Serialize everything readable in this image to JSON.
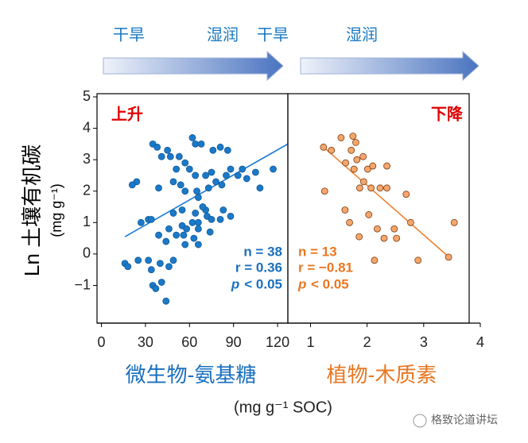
{
  "header": {
    "arrow_labels": [
      "干旱",
      "湿润",
      "干旱",
      "湿润"
    ]
  },
  "y_label": "Ln 土壤有机碳",
  "y_unit": "(mg g⁻¹)",
  "x_unit": "(mg g⁻¹ SOC)",
  "watermark": "格致论道讲坛",
  "chart_data": [
    {
      "type": "scatter",
      "x_label": "微生物-氨基糖",
      "annotation": "上升",
      "stats": {
        "n": "n = 38",
        "r": "r = 0.36",
        "p_symbol": "p",
        "p": "< 0.05"
      },
      "xlim": [
        -3,
        127
      ],
      "xticks": [
        0,
        30,
        60,
        90,
        120
      ],
      "ylim": [
        -2.2,
        5
      ],
      "yticks": [
        5,
        4,
        3,
        2,
        1,
        0,
        {
          "value": -1,
          "label": "−1"
        }
      ],
      "series": [
        {
          "color": "#1b79c8",
          "x": [
            16,
            18,
            25,
            34,
            35,
            32,
            37,
            44,
            41,
            49,
            46,
            40,
            35,
            38,
            41,
            45,
            47,
            53,
            57,
            60,
            64,
            62,
            68,
            76,
            81,
            86,
            88,
            93,
            99,
            96,
            117,
            105,
            108,
            75,
            71,
            78,
            73,
            82,
            85,
            64,
            51,
            54,
            49,
            39,
            57,
            65,
            24,
            21,
            66,
            32,
            34,
            27,
            46,
            55,
            58,
            62,
            66,
            55,
            64,
            72,
            71,
            75,
            81,
            88,
            39,
            44,
            51,
            63,
            56,
            66,
            74,
            83,
            69,
            49,
            57,
            66
          ],
          "values": [
            -0.3,
            -0.4,
            -0.2,
            -0.5,
            -1.0,
            -0.2,
            -1.1,
            -1.5,
            -0.9,
            -0.2,
            -0.4,
            -0.3,
            3.5,
            3.4,
            3.1,
            3.3,
            3.1,
            3.1,
            2.9,
            2.7,
            3.5,
            3.7,
            3.5,
            3.3,
            3.4,
            3.3,
            2.7,
            2.5,
            2.4,
            2.7,
            2.7,
            2.6,
            2.1,
            2.6,
            2.5,
            2.3,
            2.1,
            2.2,
            2.5,
            2.5,
            2.7,
            2.2,
            2.3,
            2.1,
            2.0,
            2.0,
            2.3,
            2.2,
            1.8,
            1.1,
            1.1,
            1.0,
            0.8,
            0.9,
            0.8,
            1.0,
            1.0,
            1.4,
            1.3,
            1.2,
            1.4,
            1.1,
            1.1,
            1.2,
            0.6,
            0.4,
            0.6,
            0.5,
            0.6,
            0.8,
            0.7,
            1.4,
            1.5,
            1.3,
            0.3,
            0.3
          ]
        }
      ],
      "trend": {
        "color": "#1c7cd5",
        "x": [
          16,
          127
        ],
        "values": [
          0.55,
          3.5
        ]
      }
    },
    {
      "type": "scatter",
      "x_label": "植物-木质素",
      "annotation": "下降",
      "stats": {
        "n": "n = 13",
        "r": "r = −0.81",
        "p_symbol": "p",
        "p": "< 0.05"
      },
      "xlim": [
        0.6,
        4
      ],
      "xticks": [
        1,
        2,
        3,
        4
      ],
      "ylim": [
        -2.2,
        5
      ],
      "series": [
        {
          "color": "#f5a66c",
          "x": [
            1.23,
            1.37,
            1.25,
            1.54,
            1.75,
            1.8,
            1.72,
            1.82,
            1.93,
            1.62,
            1.77,
            2.01,
            2.1,
            2.35,
            1.94,
            1.87,
            2.07,
            2.23,
            2.35,
            2.69,
            1.61,
            1.69,
            2.03,
            2.18,
            2.48,
            2.77,
            1.86,
            2.3,
            2.52,
            2.13,
            2.9,
            3.44,
            3.54
          ],
          "values": [
            3.4,
            3.3,
            2.0,
            3.7,
            3.75,
            3.55,
            3.3,
            3.0,
            3.1,
            2.9,
            2.7,
            2.7,
            2.8,
            2.8,
            2.3,
            2.1,
            2.1,
            2.1,
            2.1,
            1.9,
            1.4,
            1.0,
            1.25,
            0.8,
            0.8,
            1.0,
            0.55,
            0.5,
            0.5,
            -0.2,
            -0.2,
            -0.1,
            1.0
          ]
        }
      ],
      "trend": {
        "color": "#f08030",
        "x": [
          1.23,
          3.48
        ],
        "values": [
          3.4,
          -0.15
        ]
      }
    }
  ]
}
